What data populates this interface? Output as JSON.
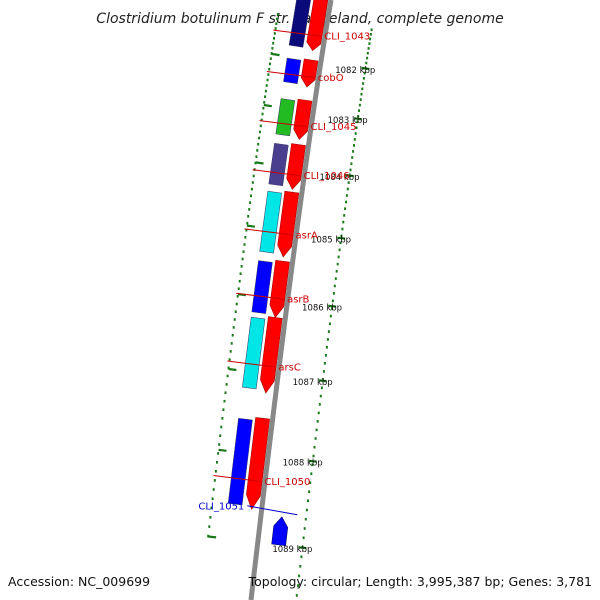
{
  "title": "Clostridium botulinum F str. Langeland, complete genome",
  "accession": "Accession: NC_009699",
  "topology": "Topology: circular; Length: 3,995,387 bp; Genes: 3,781",
  "colors": {
    "backbone": "#888888",
    "tick": "#1a7a1a",
    "label_forward": "#cc0000",
    "label_reverse": "#0000cc"
  },
  "ticks": [
    {
      "label": "1082 kbp",
      "t": 0.155
    },
    {
      "label": "1083 kbp",
      "t": 0.265
    },
    {
      "label": "1084 kbp",
      "t": 0.376
    },
    {
      "label": "1085 kbp",
      "t": 0.487
    },
    {
      "label": "1086 kbp",
      "t": 0.597
    },
    {
      "label": "1087 kbp",
      "t": 0.708
    },
    {
      "label": "1088 kbp",
      "t": 0.819
    },
    {
      "label": "1089 kbp",
      "t": 0.93
    }
  ],
  "genes": [
    {
      "name": "CLI_1043",
      "color": "#0a0a7a",
      "inner": "#ff0000",
      "t0": 0.0,
      "t1": 0.133,
      "label_t": 0.1
    },
    {
      "name": "cobO",
      "color": "#0000ff",
      "inner": "#ff0000",
      "t0": 0.155,
      "t1": 0.215,
      "label_t": 0.195
    },
    {
      "name": "CLI_1045",
      "color": "#22bb22",
      "inner": "#ff0000",
      "t0": 0.243,
      "t1": 0.322,
      "label_t": 0.297
    },
    {
      "name": "CLI_1046",
      "color": "#4a3f8f",
      "inner": "#ff0000",
      "t0": 0.332,
      "t1": 0.415,
      "label_t": 0.39
    },
    {
      "name": "asrA",
      "color": "#00e5e5",
      "inner": "#ff0000",
      "t0": 0.42,
      "t1": 0.53,
      "label_t": 0.493
    },
    {
      "name": "asrB",
      "color": "#0000ff",
      "inner": "#ff0000",
      "t0": 0.537,
      "t1": 0.625,
      "label_t": 0.596
    },
    {
      "name": "arsC",
      "color": "#00e5e5",
      "inner": "#ff0000",
      "t0": 0.625,
      "t1": 0.735,
      "label_t": 0.697
    },
    {
      "name": "CLI_1050",
      "color": "#0000ff",
      "inner": "#ff0000",
      "t0": 0.77,
      "t1": 0.89,
      "label_t": 0.853
    }
  ],
  "reverse_gene": {
    "name": "CLI_1051",
    "color": "#0000ff",
    "t0": 0.895,
    "t1": 0.93,
    "label_t": 0.89
  }
}
